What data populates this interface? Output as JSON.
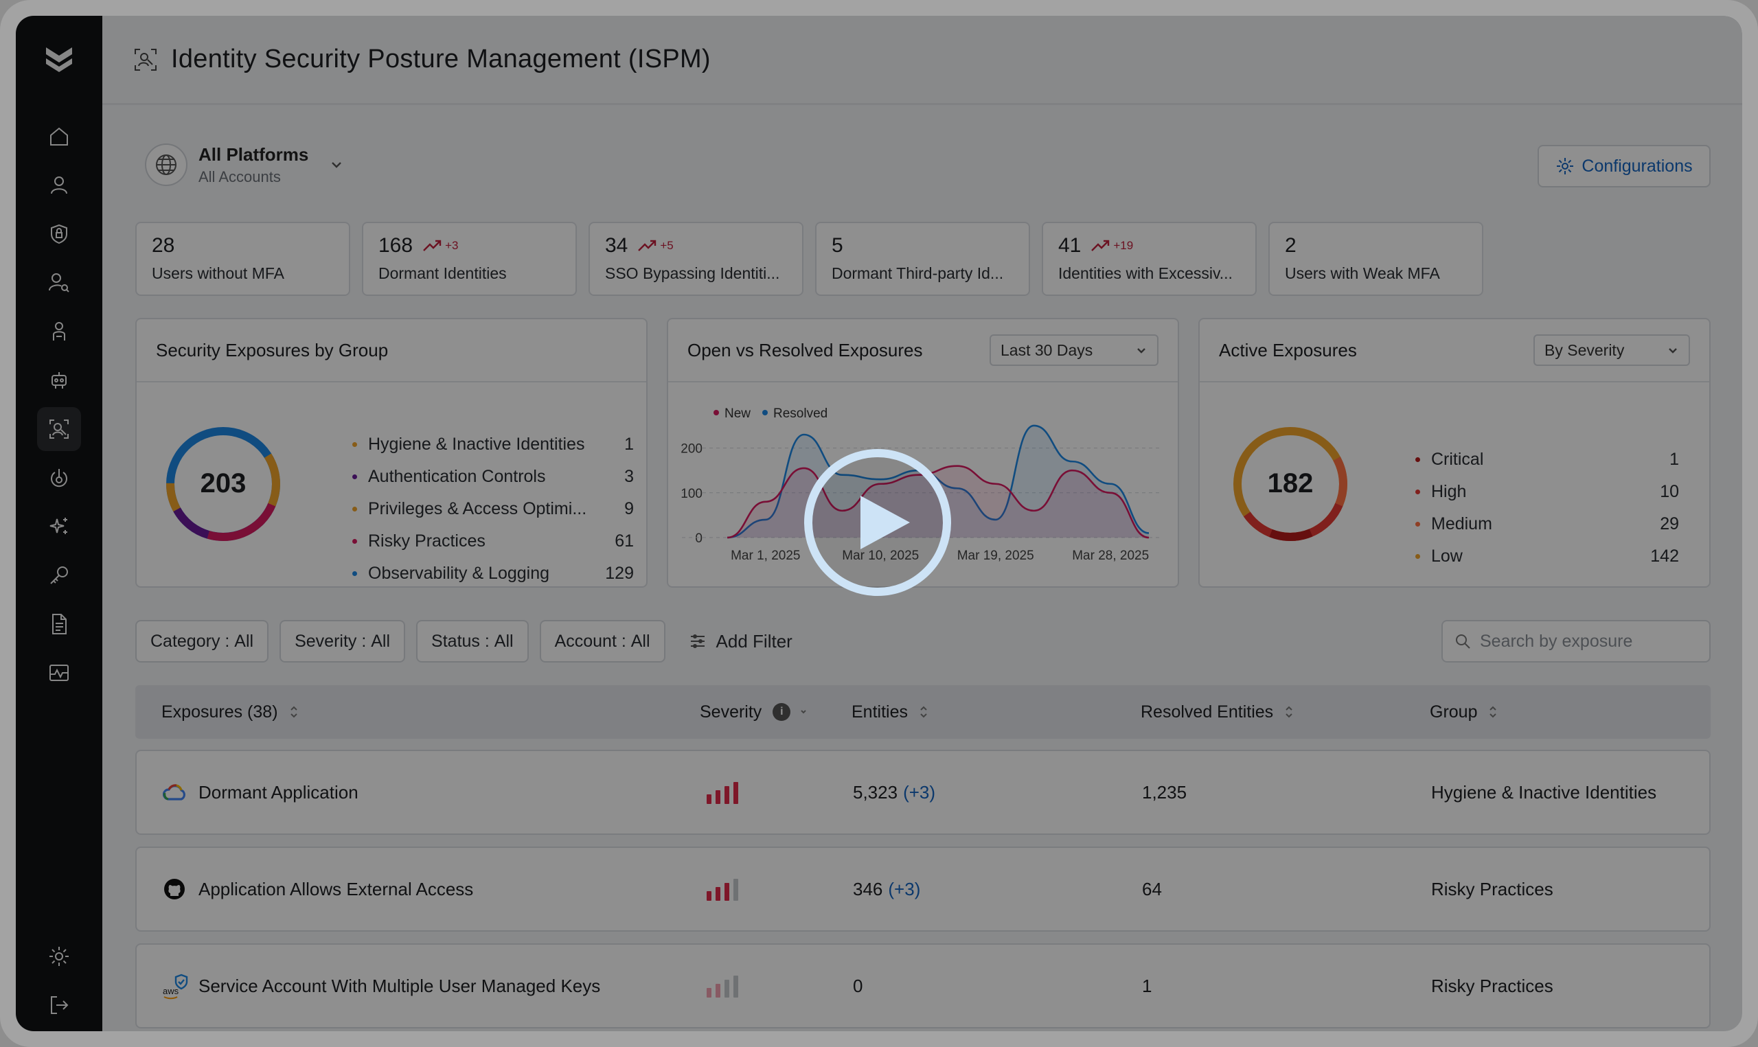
{
  "header": {
    "title": "Identity Security Posture Management (ISPM)"
  },
  "platform": {
    "name": "All Platforms",
    "accounts": "All Accounts"
  },
  "config_button": "Configurations",
  "stats": [
    {
      "value": "28",
      "label": "Users without MFA",
      "trend": ""
    },
    {
      "value": "168",
      "label": "Dormant Identities",
      "trend": "+3"
    },
    {
      "value": "34",
      "label": "SSO Bypassing Identiti...",
      "trend": "+5"
    },
    {
      "value": "5",
      "label": "Dormant Third-party Id...",
      "trend": ""
    },
    {
      "value": "41",
      "label": "Identities with Excessiv...",
      "trend": "+19"
    },
    {
      "value": "2",
      "label": "Users with Weak MFA",
      "trend": ""
    }
  ],
  "group_panel": {
    "title": "Security Exposures by Group",
    "total": "203",
    "items": [
      {
        "label": "Hygiene & Inactive Identities",
        "value": "1",
        "color": "#f0a42b"
      },
      {
        "label": "Authentication Controls",
        "value": "3",
        "color": "#6a1b9a"
      },
      {
        "label": "Privileges & Access Optimi...",
        "value": "9",
        "color": "#f0a42b"
      },
      {
        "label": "Risky Practices",
        "value": "61",
        "color": "#d81b60"
      },
      {
        "label": "Observability & Logging",
        "value": "129",
        "color": "#1e88e5"
      }
    ]
  },
  "chart_panel": {
    "title": "Open vs Resolved Exposures",
    "range": "Last 30 Days"
  },
  "chart_data": {
    "type": "area",
    "x": [
      "Feb 27, 2025",
      "Mar 1, 2025",
      "Mar 4, 2025",
      "Mar 7, 2025",
      "Mar 10, 2025",
      "Mar 13, 2025",
      "Mar 16, 2025",
      "Mar 19, 2025",
      "Mar 22, 2025",
      "Mar 25, 2025",
      "Mar 28, 2025",
      "Mar 31, 2025"
    ],
    "x_ticks": [
      "Mar 1, 2025",
      "Mar 10, 2025",
      "Mar 19, 2025",
      "Mar 28, 2025"
    ],
    "y_ticks": [
      "200",
      "100",
      "0"
    ],
    "ylim": [
      0,
      230
    ],
    "series": [
      {
        "name": "New",
        "color": "#d81b60",
        "values": [
          0,
          80,
          155,
          60,
          120,
          140,
          160,
          120,
          60,
          150,
          100,
          0
        ]
      },
      {
        "name": "Resolved",
        "color": "#1e88e5",
        "values": [
          0,
          40,
          230,
          140,
          130,
          150,
          110,
          40,
          250,
          170,
          120,
          10
        ]
      }
    ],
    "legend": "top-left",
    "grid": true
  },
  "active_panel": {
    "title": "Active Exposures",
    "mode": "By Severity",
    "total": "182",
    "items": [
      {
        "label": "Critical",
        "value": "1",
        "color": "#b71c1c"
      },
      {
        "label": "High",
        "value": "10",
        "color": "#e53935"
      },
      {
        "label": "Medium",
        "value": "29",
        "color": "#ff7043"
      },
      {
        "label": "Low",
        "value": "142",
        "color": "#f0a42b"
      }
    ]
  },
  "filters": {
    "chips": [
      {
        "label": "Category :",
        "value": "All"
      },
      {
        "label": "Severity :",
        "value": "All"
      },
      {
        "label": "Status :",
        "value": "All"
      },
      {
        "label": "Account :",
        "value": "All"
      }
    ],
    "add": "Add Filter",
    "search_placeholder": "Search by exposure"
  },
  "table": {
    "headers": {
      "exposures": "Exposures (38)",
      "severity": "Severity",
      "entities": "Entities",
      "resolved": "Resolved Entities",
      "group": "Group"
    },
    "rows": [
      {
        "name": "Dormant Application",
        "platform_icon": "google-cloud-icon",
        "severity_level": 4,
        "entities": "5,323",
        "entities_delta": "(+3)",
        "resolved": "1,235",
        "group": "Hygiene & Inactive Identities"
      },
      {
        "name": "Application Allows External Access",
        "platform_icon": "github-icon",
        "severity_level": 3,
        "entities": "346",
        "entities_delta": "(+3)",
        "resolved": "64",
        "group": "Risky Practices"
      },
      {
        "name": "Service Account With Multiple User Managed Keys",
        "platform_icon": "aws-icon",
        "severity_level": 2,
        "entities": "0",
        "entities_delta": "",
        "resolved": "1",
        "group": "Risky Practices"
      }
    ]
  }
}
